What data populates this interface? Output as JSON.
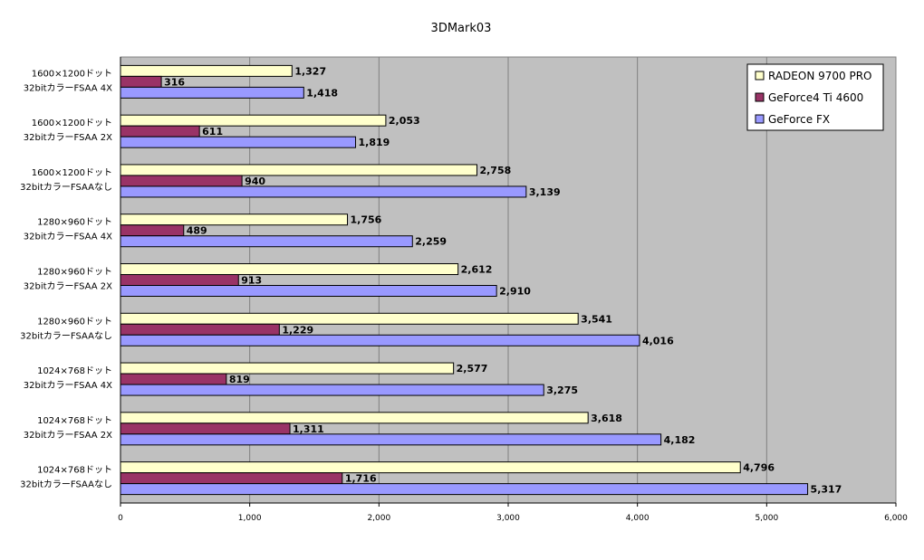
{
  "chart_data": {
    "type": "bar",
    "orientation": "horizontal",
    "title": "3DMark03",
    "xlabel": "",
    "ylabel": "",
    "xlim": [
      0,
      6000
    ],
    "x_ticks": [
      0,
      1000,
      2000,
      3000,
      4000,
      5000,
      6000
    ],
    "x_tick_labels": [
      "0",
      "1,000",
      "2,000",
      "3,000",
      "4,000",
      "5,000",
      "6,000"
    ],
    "grid": true,
    "legend_position": "top-right",
    "plot_background": "#C0C0C0",
    "categories": [
      [
        "1600×1200ドット",
        "32bitカラーFSAA 4X"
      ],
      [
        "1600×1200ドット",
        "32bitカラーFSAA 2X"
      ],
      [
        "1600×1200ドット",
        "32bitカラーFSAAなし"
      ],
      [
        "1280×960ドット",
        "32bitカラーFSAA 4X"
      ],
      [
        "1280×960ドット",
        "32bitカラーFSAA 2X"
      ],
      [
        "1280×960ドット",
        "32bitカラーFSAAなし"
      ],
      [
        "1024×768ドット",
        "32bitカラーFSAA 4X"
      ],
      [
        "1024×768ドット",
        "32bitカラーFSAA 2X"
      ],
      [
        "1024×768ドット",
        "32bitカラーFSAAなし"
      ]
    ],
    "series": [
      {
        "name": "RADEON 9700 PRO",
        "color": "#FFFFCC",
        "values": [
          1327,
          2053,
          2758,
          1756,
          2612,
          3541,
          2577,
          3618,
          4796
        ],
        "labels": [
          "1,327",
          "2,053",
          "2,758",
          "1,756",
          "2,612",
          "3,541",
          "2,577",
          "3,618",
          "4,796"
        ]
      },
      {
        "name": "GeForce4 Ti 4600",
        "color": "#993366",
        "values": [
          316,
          611,
          940,
          489,
          913,
          1229,
          819,
          1311,
          1716
        ],
        "labels": [
          "316",
          "611",
          "940",
          "489",
          "913",
          "1,229",
          "819",
          "1,311",
          "1,716"
        ]
      },
      {
        "name": "GeForce FX",
        "color": "#9999FF",
        "values": [
          1418,
          1819,
          3139,
          2259,
          2910,
          4016,
          3275,
          4182,
          5317
        ],
        "labels": [
          "1,418",
          "1,819",
          "3,139",
          "2,259",
          "2,910",
          "4,016",
          "3,275",
          "4,182",
          "5,317"
        ]
      }
    ]
  }
}
